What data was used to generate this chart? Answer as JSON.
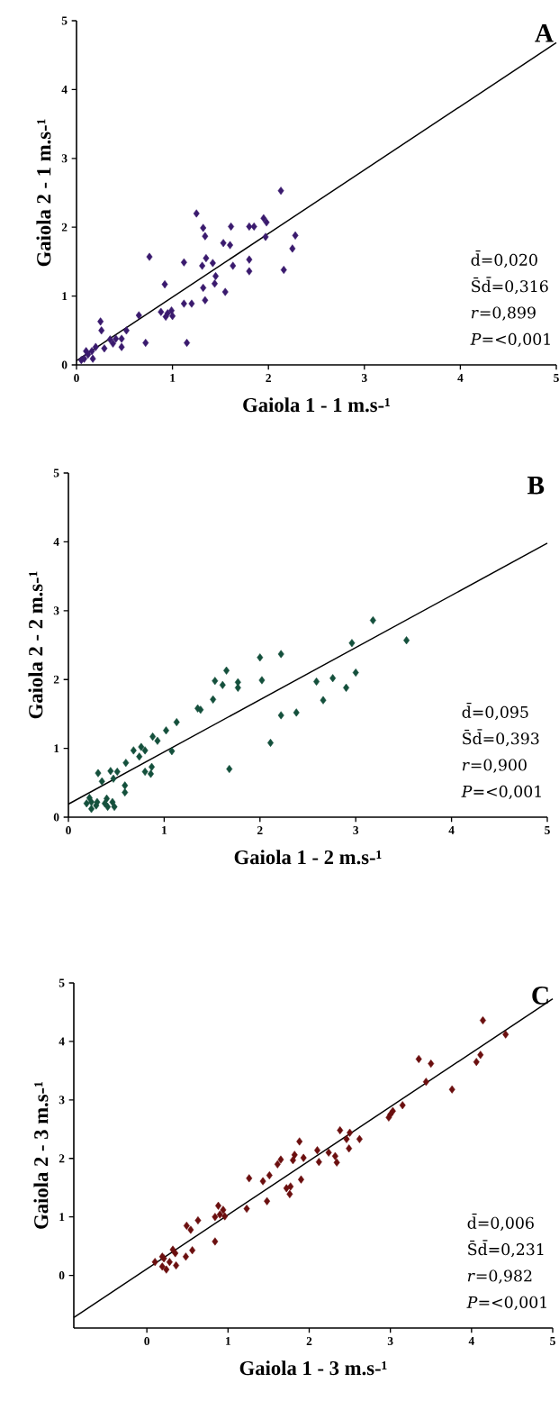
{
  "chart_data": [
    {
      "type": "scatter",
      "title": "A",
      "xlabel": "Gaiola 1 - 1 m.s-¹",
      "ylabel": "Gaiola 2 - 1 m.s-¹",
      "annotations": [
        "d̄=0,020",
        "S̄d̄=0,316",
        "*r*=0,899",
        "*P*=<0,001"
      ],
      "xlim": [
        0,
        5
      ],
      "ylim": [
        0,
        5
      ],
      "xticks": [
        0,
        1,
        2,
        3,
        4,
        5
      ],
      "yticks": [
        0,
        1,
        2,
        3,
        4,
        5
      ],
      "series": [
        {
          "marker": "diamond",
          "color": "#3a1a6e",
          "x": [
            2.13,
            1.25,
            1.32,
            1.34,
            1.61,
            1.8,
            1.85,
            1.95,
            1.98,
            1.97,
            2.28,
            2.25,
            2.16,
            1.8,
            1.8,
            1.53,
            1.6,
            1.63,
            1.35,
            1.31,
            1.42,
            1.45,
            1.44,
            1.32,
            1.55,
            1.34,
            1.12,
            0.76,
            0.92,
            1.12,
            1.2,
            0.88,
            0.95,
            0.99,
            1.0,
            0.93,
            0.65,
            1.15,
            0.72,
            0.52,
            0.47,
            0.47,
            0.41,
            0.38,
            0.35,
            0.25,
            0.26,
            0.29,
            0.2,
            0.16,
            0.12,
            0.08,
            0.05,
            0.17,
            0.1
          ],
          "values": [
            2.53,
            2.2,
            1.99,
            1.87,
            2.01,
            2.01,
            2.01,
            2.13,
            2.07,
            1.86,
            1.88,
            1.69,
            1.38,
            1.53,
            1.36,
            1.77,
            1.74,
            1.44,
            1.55,
            1.44,
            1.48,
            1.29,
            1.18,
            1.12,
            1.06,
            0.94,
            1.49,
            1.57,
            1.17,
            0.89,
            0.89,
            0.77,
            0.75,
            0.79,
            0.71,
            0.7,
            0.72,
            0.32,
            0.32,
            0.5,
            0.38,
            0.26,
            0.38,
            0.31,
            0.37,
            0.63,
            0.5,
            0.24,
            0.26,
            0.2,
            0.15,
            0.09,
            0.07,
            0.09,
            0.2
          ]
        },
        {
          "type": "line",
          "line_style": "solid",
          "color": "#000000",
          "x": [
            0,
            5
          ],
          "values": [
            0.06,
            4.68
          ]
        }
      ]
    },
    {
      "type": "scatter",
      "title": "B",
      "xlabel": "Gaiola 1 - 2 m.s-¹",
      "ylabel": "Gaiola 2 - 2 m.s-¹",
      "annotations": [
        "d̄=0,095",
        "S̄d̄=0,393",
        "*r*=0,900",
        "*P*=<0,001"
      ],
      "xlim": [
        0,
        5
      ],
      "ylim": [
        0,
        5
      ],
      "xticks": [
        0,
        1,
        2,
        3,
        4,
        5
      ],
      "yticks": [
        0,
        1,
        2,
        3,
        4,
        5
      ],
      "series": [
        {
          "marker": "diamond",
          "color": "#14503c",
          "x": [
            3.18,
            3.53,
            2.96,
            3.0,
            2.9,
            2.76,
            2.66,
            2.59,
            2.22,
            2.0,
            2.02,
            2.22,
            2.38,
            2.11,
            1.68,
            1.65,
            1.53,
            1.61,
            1.77,
            1.77,
            1.51,
            1.35,
            1.38,
            1.13,
            1.02,
            1.08,
            0.88,
            0.93,
            0.76,
            0.8,
            0.68,
            0.74,
            0.8,
            0.87,
            0.86,
            0.6,
            0.59,
            0.59,
            0.51,
            0.44,
            0.35,
            0.31,
            0.47,
            0.4,
            0.46,
            0.48,
            0.38,
            0.29,
            0.24,
            0.19,
            0.24,
            0.22,
            0.3,
            0.41
          ],
          "values": [
            2.86,
            2.57,
            2.53,
            2.1,
            1.88,
            2.02,
            1.7,
            1.97,
            2.37,
            2.32,
            1.99,
            1.48,
            1.52,
            1.08,
            0.7,
            2.13,
            1.98,
            1.92,
            1.96,
            1.88,
            1.71,
            1.58,
            1.56,
            1.38,
            1.26,
            0.96,
            1.17,
            1.11,
            1.02,
            0.97,
            0.97,
            0.88,
            0.66,
            0.73,
            0.63,
            0.79,
            0.46,
            0.36,
            0.66,
            0.67,
            0.52,
            0.64,
            0.56,
            0.27,
            0.22,
            0.15,
            0.2,
            0.17,
            0.22,
            0.2,
            0.12,
            0.28,
            0.22,
            0.15
          ]
        },
        {
          "type": "line",
          "line_style": "solid",
          "color": "#000000",
          "x": [
            0,
            5
          ],
          "values": [
            0.19,
            3.98
          ]
        }
      ]
    },
    {
      "type": "scatter",
      "title": "C",
      "xlabel": "Gaiola 1 - 3 m.s-¹",
      "ylabel": "Gaiola 2 - 3 m.s-¹",
      "annotations": [
        "d̄=0,006",
        "S̄d̄=0,231",
        "*r*=0,982",
        "*P*=<0,001"
      ],
      "xlim": [
        -0.9,
        5
      ],
      "ylim": [
        -0.9,
        5
      ],
      "xticks": [
        0,
        1,
        2,
        3,
        4,
        5
      ],
      "yticks": [
        0,
        1,
        2,
        3,
        4,
        5
      ],
      "series": [
        {
          "marker": "diamond",
          "color": "#6b0f0f",
          "x": [
            4.14,
            4.42,
            4.11,
            4.06,
            3.35,
            3.5,
            3.44,
            3.76,
            3.15,
            3.03,
            2.98,
            3.0,
            2.38,
            2.5,
            2.62,
            2.46,
            2.49,
            2.34,
            2.32,
            2.24,
            2.1,
            2.12,
            1.88,
            1.93,
            1.82,
            1.8,
            1.65,
            1.61,
            1.9,
            1.77,
            1.72,
            1.76,
            1.51,
            1.43,
            1.26,
            1.48,
            1.23,
            0.88,
            0.94,
            0.84,
            0.96,
            0.9,
            0.84,
            0.63,
            0.49,
            0.54,
            0.56,
            0.48,
            0.36,
            0.32,
            0.35,
            0.19,
            0.1,
            0.24,
            0.19,
            0.28,
            0.21
          ],
          "values": [
            4.36,
            4.12,
            3.77,
            3.65,
            3.7,
            3.62,
            3.31,
            3.18,
            2.91,
            2.81,
            2.7,
            2.75,
            2.48,
            2.44,
            2.33,
            2.33,
            2.17,
            1.93,
            2.04,
            2.1,
            2.14,
            1.94,
            2.29,
            2.01,
            2.06,
            1.97,
            1.98,
            1.9,
            1.64,
            1.52,
            1.49,
            1.39,
            1.71,
            1.61,
            1.66,
            1.27,
            1.14,
            1.19,
            1.12,
            1.0,
            1.01,
            1.04,
            0.58,
            0.94,
            0.85,
            0.78,
            0.43,
            0.32,
            0.17,
            0.44,
            0.38,
            0.32,
            0.23,
            0.1,
            0.15,
            0.23,
            0.29
          ]
        },
        {
          "type": "line",
          "line_style": "solid",
          "color": "#000000",
          "x": [
            -0.9,
            5
          ],
          "values": [
            -0.72,
            4.73
          ]
        }
      ]
    }
  ]
}
